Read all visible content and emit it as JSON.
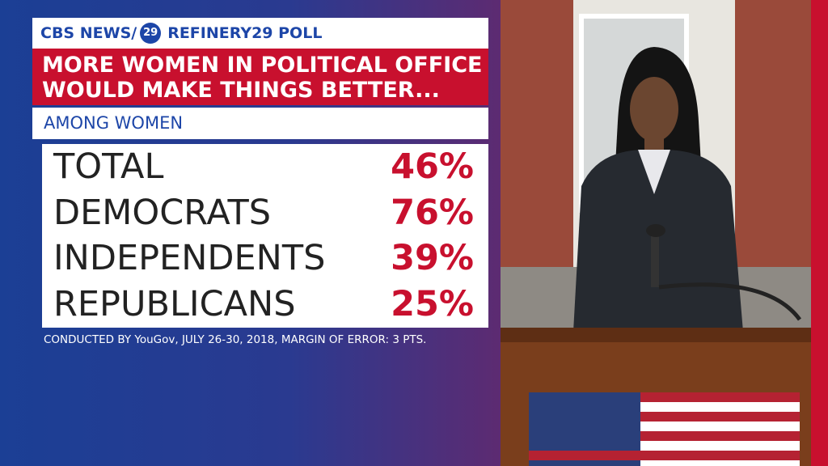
{
  "header": {
    "brand": "CBS NEWS/",
    "logo": "29",
    "poll": "REFINERY29 POLL"
  },
  "headline": {
    "line1": "MORE WOMEN IN POLITICAL OFFICE",
    "line2": "WOULD MAKE THINGS BETTER..."
  },
  "subhead": "AMONG WOMEN",
  "table": {
    "rows": [
      [
        "TOTAL",
        "46%"
      ],
      [
        "DEMOCRATS",
        "76%"
      ],
      [
        "INDEPENDENTS",
        "39%"
      ],
      [
        "REPUBLICANS",
        "25%"
      ]
    ]
  },
  "footnote": "CONDUCTED BY YouGov, JULY 26-30, 2018, MARGIN OF ERROR: 3 PTS."
}
